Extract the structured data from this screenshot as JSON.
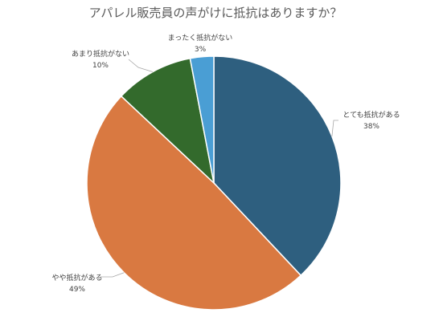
{
  "chart_data": {
    "type": "pie",
    "title": "アパレル販売員の声がけに抵抗はありますか？",
    "categories": [
      "とても抵抗がある",
      "やや抵抗がある",
      "あまり抵抗がない",
      "まったく抵抗がない"
    ],
    "values": [
      38,
      49,
      10,
      3
    ],
    "data_labels": [
      "38%",
      "49%",
      "10%",
      "3%"
    ],
    "colors": [
      "#2e5f7f",
      "#d97941",
      "#336a2c",
      "#4a9ed4"
    ],
    "start_angle_deg": 0,
    "direction": "clockwise",
    "legend": "none"
  }
}
